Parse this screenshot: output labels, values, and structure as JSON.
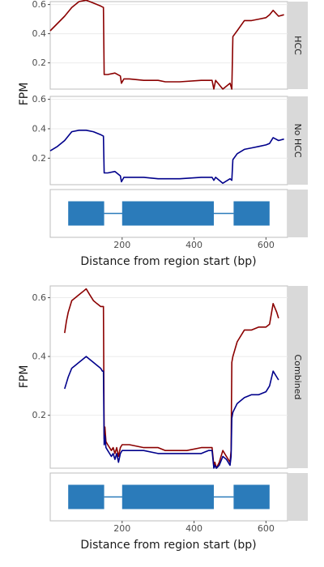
{
  "colors": {
    "hcc": "#8b0000",
    "no_hcc": "#00008b",
    "exon": "#2b7bba",
    "strip_bg": "#d9d9d9",
    "panel_border": "#bdbdbd",
    "grid": "#ebebeb"
  },
  "top_figure": {
    "ylabel": "FPM",
    "xlabel": "Distance from region start (bp)",
    "facets": [
      {
        "strip": "HCC",
        "series_color": "hcc",
        "yticks": [
          0.2,
          0.4,
          0.6
        ]
      },
      {
        "strip": "No HCC",
        "series_color": "no_hcc",
        "yticks": [
          0.2,
          0.4,
          0.6
        ]
      }
    ],
    "xticks": [
      200,
      400,
      600
    ]
  },
  "bottom_figure": {
    "ylabel": "FPM",
    "xlabel": "Distance from region start (bp)",
    "strip": "Combined",
    "yticks": [
      0.2,
      0.4,
      0.6
    ],
    "xticks": [
      200,
      400,
      600
    ]
  },
  "chart_data": [
    {
      "type": "line",
      "facet": "HCC",
      "x": [
        0,
        20,
        40,
        60,
        80,
        100,
        120,
        140,
        148,
        150,
        160,
        180,
        195,
        198,
        205,
        220,
        260,
        300,
        320,
        360,
        420,
        450,
        455,
        460,
        480,
        500,
        505,
        508,
        520,
        540,
        560,
        580,
        600,
        610,
        620,
        635,
        650
      ],
      "series": [
        {
          "name": "HCC",
          "values": [
            0.42,
            0.47,
            0.52,
            0.58,
            0.62,
            0.63,
            0.61,
            0.59,
            0.58,
            0.12,
            0.12,
            0.13,
            0.11,
            0.06,
            0.09,
            0.09,
            0.08,
            0.08,
            0.07,
            0.07,
            0.08,
            0.08,
            0.02,
            0.08,
            0.02,
            0.06,
            0.02,
            0.38,
            0.42,
            0.49,
            0.49,
            0.5,
            0.51,
            0.53,
            0.56,
            0.52,
            0.53
          ]
        }
      ],
      "ylim": [
        0.02,
        0.62
      ],
      "xlim": [
        0,
        660
      ]
    },
    {
      "type": "line",
      "facet": "No HCC",
      "x": [
        0,
        20,
        40,
        60,
        80,
        100,
        120,
        140,
        148,
        150,
        160,
        180,
        195,
        198,
        205,
        220,
        260,
        300,
        320,
        360,
        420,
        450,
        455,
        460,
        480,
        500,
        505,
        508,
        520,
        540,
        560,
        580,
        600,
        610,
        620,
        635,
        650
      ],
      "series": [
        {
          "name": "No HCC",
          "values": [
            0.25,
            0.28,
            0.32,
            0.38,
            0.39,
            0.39,
            0.38,
            0.36,
            0.35,
            0.1,
            0.1,
            0.11,
            0.08,
            0.04,
            0.07,
            0.07,
            0.07,
            0.06,
            0.06,
            0.06,
            0.07,
            0.07,
            0.05,
            0.07,
            0.03,
            0.06,
            0.05,
            0.19,
            0.23,
            0.26,
            0.27,
            0.28,
            0.29,
            0.3,
            0.34,
            0.32,
            0.33
          ]
        }
      ],
      "ylim": [
        0.02,
        0.62
      ],
      "xlim": [
        0,
        660
      ]
    },
    {
      "type": "gene_model",
      "facet": "exons",
      "exons": [
        [
          50,
          150
        ],
        [
          200,
          455
        ],
        [
          510,
          610
        ]
      ],
      "intron_line": [
        150,
        510
      ],
      "xlim": [
        0,
        660
      ]
    },
    {
      "type": "line",
      "facet": "Combined",
      "x": [
        40,
        45,
        50,
        60,
        70,
        80,
        90,
        100,
        110,
        120,
        130,
        140,
        145,
        148,
        150,
        152,
        155,
        160,
        170,
        175,
        180,
        185,
        190,
        195,
        200,
        220,
        260,
        300,
        320,
        340,
        360,
        380,
        420,
        440,
        450,
        455,
        458,
        462,
        470,
        480,
        490,
        500,
        503,
        505,
        508,
        520,
        540,
        560,
        580,
        600,
        610,
        620,
        630,
        635
      ],
      "series": [
        {
          "name": "HCC",
          "values": [
            0.48,
            0.52,
            0.55,
            0.59,
            0.6,
            0.61,
            0.62,
            0.63,
            0.61,
            0.59,
            0.58,
            0.57,
            0.57,
            0.57,
            0.12,
            0.16,
            0.11,
            0.1,
            0.08,
            0.09,
            0.07,
            0.09,
            0.06,
            0.09,
            0.1,
            0.1,
            0.09,
            0.09,
            0.08,
            0.08,
            0.08,
            0.08,
            0.09,
            0.09,
            0.09,
            0.03,
            0.04,
            0.02,
            0.04,
            0.08,
            0.06,
            0.04,
            0.08,
            0.38,
            0.4,
            0.45,
            0.49,
            0.49,
            0.5,
            0.5,
            0.51,
            0.58,
            0.55,
            0.53
          ]
        },
        {
          "name": "No HCC",
          "values": [
            0.29,
            0.31,
            0.33,
            0.36,
            0.37,
            0.38,
            0.39,
            0.4,
            0.39,
            0.38,
            0.37,
            0.36,
            0.35,
            0.35,
            0.1,
            0.13,
            0.09,
            0.08,
            0.06,
            0.07,
            0.05,
            0.07,
            0.04,
            0.07,
            0.08,
            0.08,
            0.08,
            0.07,
            0.07,
            0.07,
            0.07,
            0.07,
            0.07,
            0.08,
            0.08,
            0.02,
            0.03,
            0.02,
            0.03,
            0.06,
            0.05,
            0.03,
            0.06,
            0.19,
            0.21,
            0.24,
            0.26,
            0.27,
            0.27,
            0.28,
            0.3,
            0.35,
            0.33,
            0.32
          ]
        }
      ],
      "ylim": [
        0.02,
        0.64
      ],
      "xlim": [
        0,
        660
      ]
    },
    {
      "type": "gene_model",
      "facet": "exons",
      "exons": [
        [
          50,
          150
        ],
        [
          200,
          455
        ],
        [
          510,
          610
        ]
      ],
      "intron_line": [
        150,
        510
      ],
      "xlim": [
        0,
        660
      ]
    }
  ]
}
